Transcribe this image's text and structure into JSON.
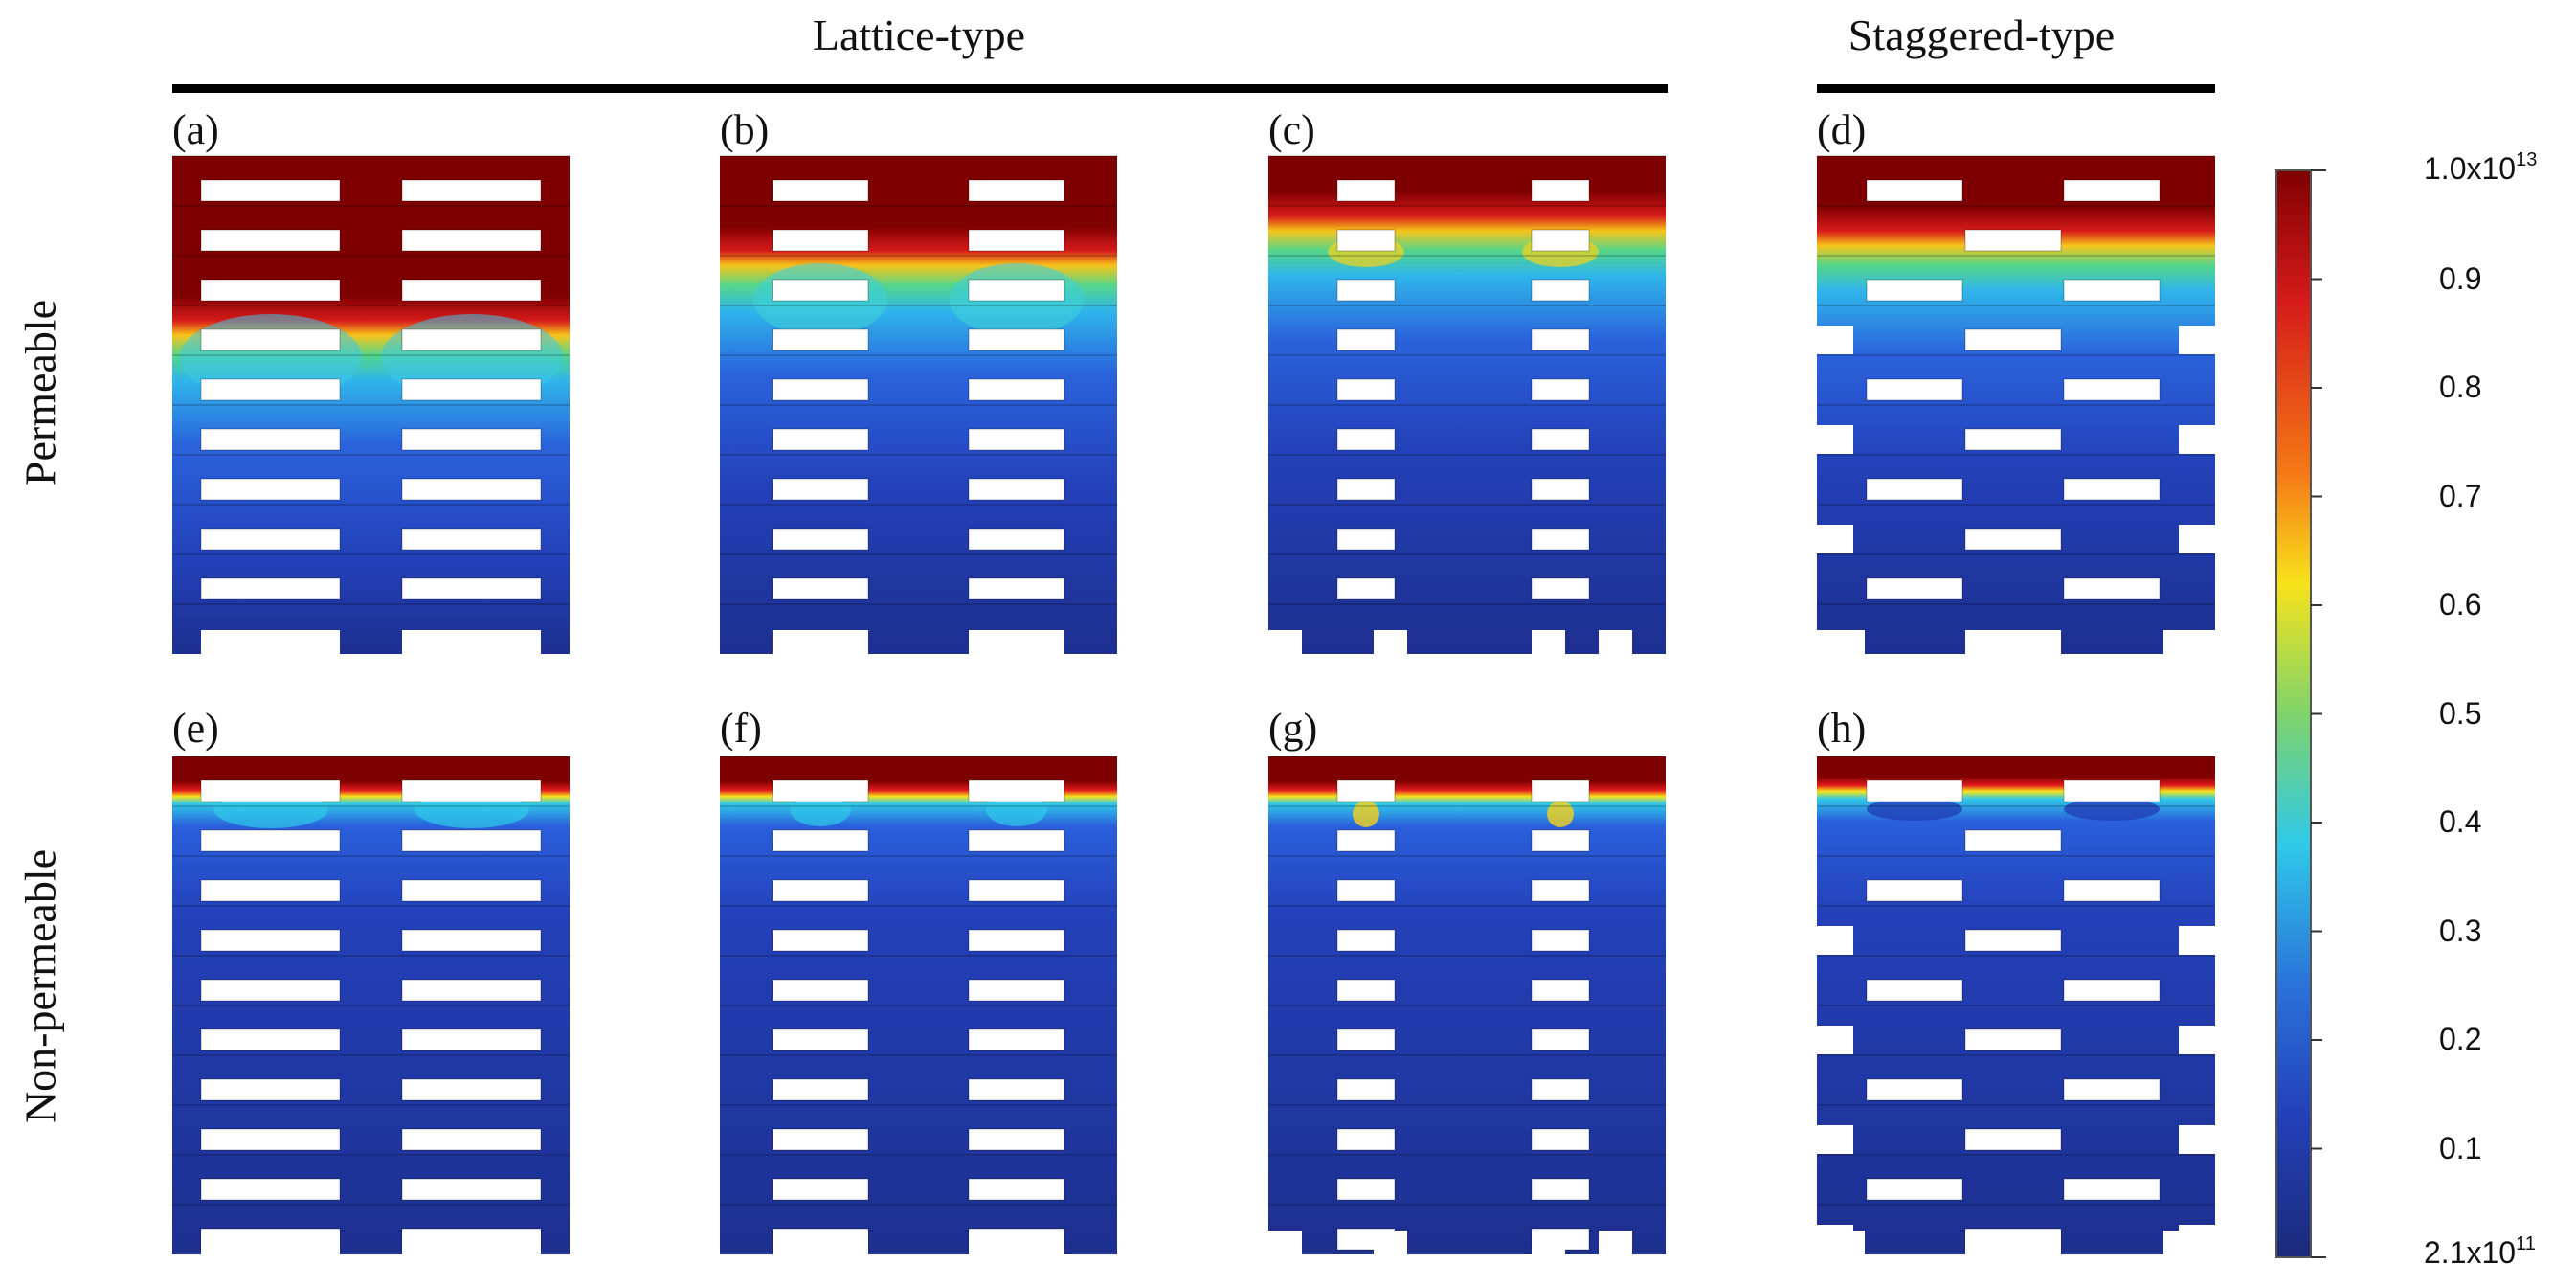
{
  "groups": {
    "lattice": "Lattice-type",
    "staggered": "Staggered-type"
  },
  "rows": {
    "permeable": "Permeable",
    "non_permeable": "Non-permeable"
  },
  "panels": [
    {
      "label": "(a)",
      "layout": "lattice",
      "spacing": "narrow-wide",
      "condition": "permeable"
    },
    {
      "label": "(b)",
      "layout": "lattice",
      "spacing": "medium",
      "condition": "permeable"
    },
    {
      "label": "(c)",
      "layout": "lattice",
      "spacing": "wide",
      "condition": "permeable"
    },
    {
      "label": "(d)",
      "layout": "staggered",
      "condition": "permeable"
    },
    {
      "label": "(e)",
      "layout": "lattice",
      "spacing": "narrow-wide",
      "condition": "non-permeable"
    },
    {
      "label": "(f)",
      "layout": "lattice",
      "spacing": "medium",
      "condition": "non-permeable"
    },
    {
      "label": "(g)",
      "layout": "lattice",
      "spacing": "wide",
      "condition": "non-permeable"
    },
    {
      "label": "(h)",
      "layout": "staggered",
      "condition": "non-permeable"
    }
  ],
  "colorbar": {
    "max_label": "1.0x10",
    "max_exp": "13",
    "min_label": "2.1x10",
    "min_exp": "11",
    "ticks": [
      "0.9",
      "0.8",
      "0.7",
      "0.6",
      "0.5",
      "0.4",
      "0.3",
      "0.2",
      "0.1"
    ],
    "colormap": "jet",
    "colors": {
      "dark_red": "#7f0000",
      "red": "#e31a1c",
      "yellow": "#f7e31a",
      "cyan": "#2fc9e8",
      "blue": "#1f3fd6",
      "dark_blue": "#1b2a7a"
    }
  }
}
